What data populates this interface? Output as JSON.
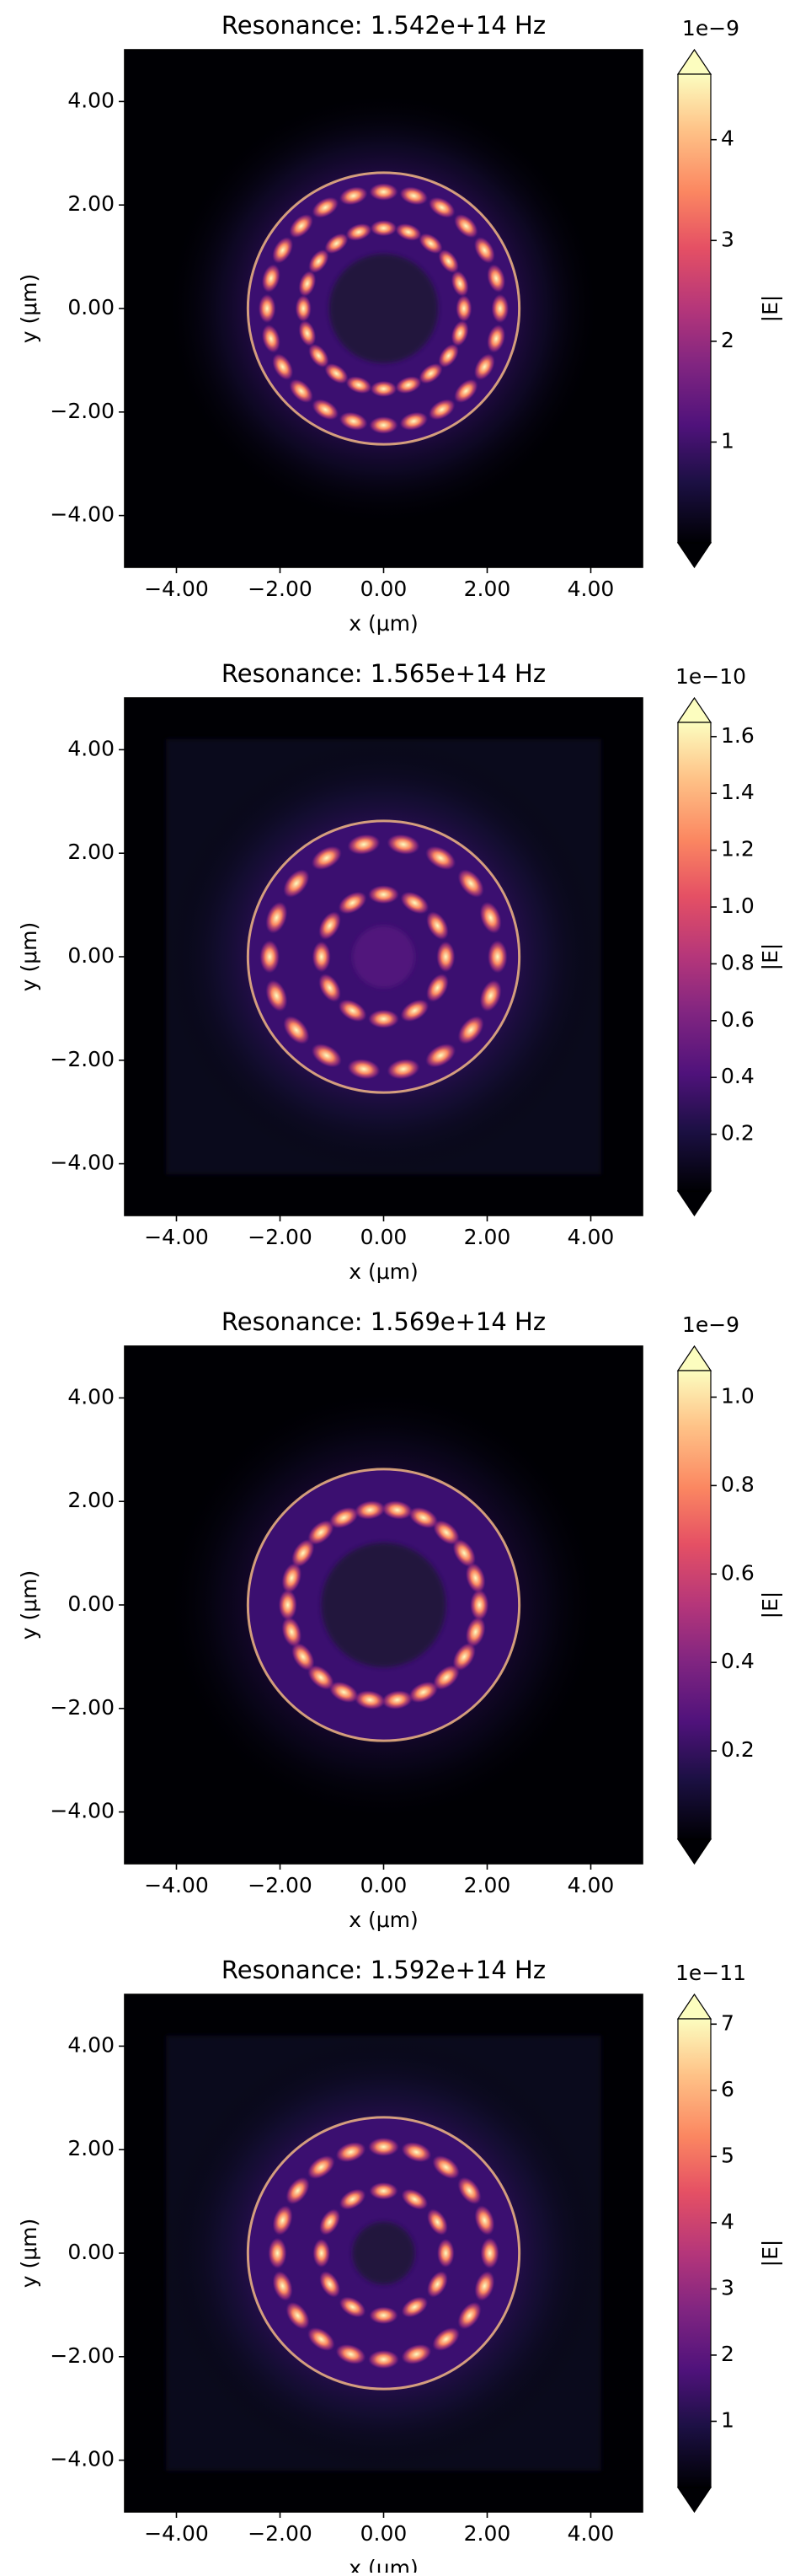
{
  "chart_data": [
    {
      "type": "heatmap",
      "title": "Resonance: 1.542e+14 Hz",
      "xlabel": "x (μm)",
      "ylabel": "y (μm)",
      "xlim": [
        -5,
        5
      ],
      "ylim": [
        -5,
        5
      ],
      "xticks": [
        {
          "value": -4,
          "label": "−4.00"
        },
        {
          "value": -2,
          "label": "−2.00"
        },
        {
          "value": 0,
          "label": "0.00"
        },
        {
          "value": 2,
          "label": "2.00"
        },
        {
          "value": 4,
          "label": "4.00"
        }
      ],
      "yticks": [
        {
          "value": -4,
          "label": "−4.00"
        },
        {
          "value": -2,
          "label": "−2.00"
        },
        {
          "value": 0,
          "label": "0.00"
        },
        {
          "value": 2,
          "label": "2.00"
        },
        {
          "value": 4,
          "label": "4.00"
        }
      ],
      "colorbar": {
        "label": "|E|",
        "offset_text": "1e−9",
        "colormap": "magma",
        "clim": [
          0,
          4.65
        ],
        "ticks": [
          1,
          2,
          3,
          4
        ]
      }
    },
    {
      "type": "heatmap",
      "title": "Resonance: 1.565e+14 Hz",
      "xlabel": "x (μm)",
      "ylabel": "y (μm)",
      "xlim": [
        -5,
        5
      ],
      "ylim": [
        -5,
        5
      ],
      "xticks": [
        {
          "value": -4,
          "label": "−4.00"
        },
        {
          "value": -2,
          "label": "−2.00"
        },
        {
          "value": 0,
          "label": "0.00"
        },
        {
          "value": 2,
          "label": "2.00"
        },
        {
          "value": 4,
          "label": "4.00"
        }
      ],
      "yticks": [
        {
          "value": -4,
          "label": "−4.00"
        },
        {
          "value": -2,
          "label": "−2.00"
        },
        {
          "value": 0,
          "label": "0.00"
        },
        {
          "value": 2,
          "label": "2.00"
        },
        {
          "value": 4,
          "label": "4.00"
        }
      ],
      "colorbar": {
        "label": "|E|",
        "offset_text": "1e−10",
        "colormap": "magma",
        "clim": [
          0,
          1.65
        ],
        "ticks": [
          0.2,
          0.4,
          0.6,
          0.8,
          {
            "value": 1,
            "label": "1.0"
          },
          1.2,
          1.4,
          1.6
        ]
      }
    },
    {
      "type": "heatmap",
      "title": "Resonance: 1.569e+14 Hz",
      "xlabel": "x (μm)",
      "ylabel": "y (μm)",
      "xlim": [
        -5,
        5
      ],
      "ylim": [
        -5,
        5
      ],
      "xticks": [
        {
          "value": -4,
          "label": "−4.00"
        },
        {
          "value": -2,
          "label": "−2.00"
        },
        {
          "value": 0,
          "label": "0.00"
        },
        {
          "value": 2,
          "label": "2.00"
        },
        {
          "value": 4,
          "label": "4.00"
        }
      ],
      "yticks": [
        {
          "value": -4,
          "label": "−4.00"
        },
        {
          "value": -2,
          "label": "−2.00"
        },
        {
          "value": 0,
          "label": "0.00"
        },
        {
          "value": 2,
          "label": "2.00"
        },
        {
          "value": 4,
          "label": "4.00"
        }
      ],
      "colorbar": {
        "label": "|E|",
        "offset_text": "1e−9",
        "colormap": "magma",
        "clim": [
          0,
          1.06
        ],
        "ticks": [
          0.2,
          0.4,
          0.6,
          0.8,
          {
            "value": 1,
            "label": "1.0"
          }
        ]
      }
    },
    {
      "type": "heatmap",
      "title": "Resonance: 1.592e+14 Hz",
      "xlabel": "x (μm)",
      "ylabel": "y (μm)",
      "xlim": [
        -5,
        5
      ],
      "ylim": [
        -5,
        5
      ],
      "xticks": [
        {
          "value": -4,
          "label": "−4.00"
        },
        {
          "value": -2,
          "label": "−2.00"
        },
        {
          "value": 0,
          "label": "0.00"
        },
        {
          "value": 2,
          "label": "2.00"
        },
        {
          "value": 4,
          "label": "4.00"
        }
      ],
      "yticks": [
        {
          "value": -4,
          "label": "−4.00"
        },
        {
          "value": -2,
          "label": "−2.00"
        },
        {
          "value": 0,
          "label": "0.00"
        },
        {
          "value": 2,
          "label": "2.00"
        },
        {
          "value": 4,
          "label": "4.00"
        }
      ],
      "colorbar": {
        "label": "|E|",
        "offset_text": "1e−11",
        "colormap": "magma",
        "clim": [
          0,
          7.08
        ],
        "ticks": [
          1,
          2,
          3,
          4,
          5,
          6,
          7
        ]
      }
    }
  ]
}
